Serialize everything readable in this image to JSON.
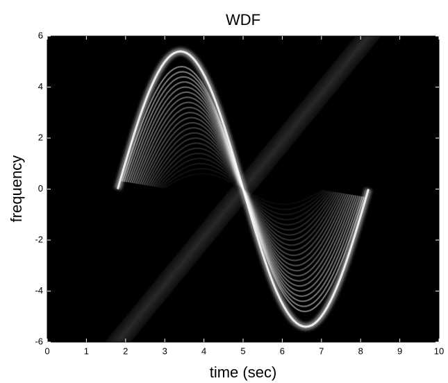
{
  "chart_data": {
    "type": "heatmap",
    "title": "WDF",
    "xlabel": "time (sec)",
    "ylabel": "frequency",
    "xlim": [
      0,
      10
    ],
    "ylim": [
      -6,
      6
    ],
    "xticks": [
      0,
      1,
      2,
      3,
      4,
      5,
      6,
      7,
      8,
      9,
      10
    ],
    "yticks": [
      -6,
      -4,
      -2,
      0,
      2,
      4,
      6
    ]
  }
}
